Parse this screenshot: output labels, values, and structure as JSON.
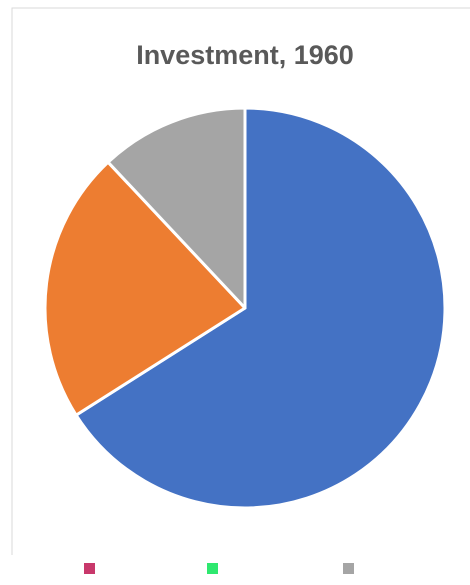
{
  "chart_data": {
    "type": "pie",
    "title": "Investment, 1960",
    "values": [
      66,
      22,
      12
    ],
    "colors": [
      "#4472c4",
      "#ed7d31",
      "#a5a5a5"
    ]
  }
}
